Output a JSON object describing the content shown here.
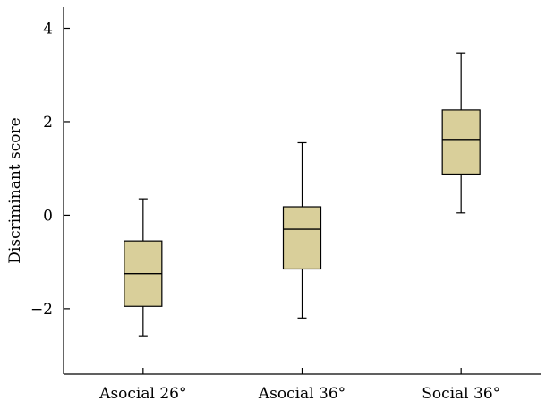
{
  "chart_data": {
    "type": "box",
    "categories": [
      "Asocial 26°",
      "Asocial 36°",
      "Social 36°"
    ],
    "boxes": [
      {
        "category": "Asocial 26°",
        "min": -2.58,
        "q1": -1.95,
        "median": -1.25,
        "q3": -0.55,
        "max": 0.35
      },
      {
        "category": "Asocial 36°",
        "min": -2.2,
        "q1": -1.15,
        "median": -0.3,
        "q3": 0.18,
        "max": 1.55
      },
      {
        "category": "Social 36°",
        "min": 0.05,
        "q1": 0.88,
        "median": 1.62,
        "q3": 2.25,
        "max": 3.47
      }
    ],
    "ylabel": "Discriminant score",
    "xlabel": "",
    "ylim": [
      -3.4,
      4.45
    ],
    "yticks": [
      -2,
      0,
      2,
      4
    ],
    "ytick_labels": [
      "−2",
      "0",
      "2",
      "4"
    ],
    "grid": false,
    "box_color": "#d9cf9a"
  }
}
